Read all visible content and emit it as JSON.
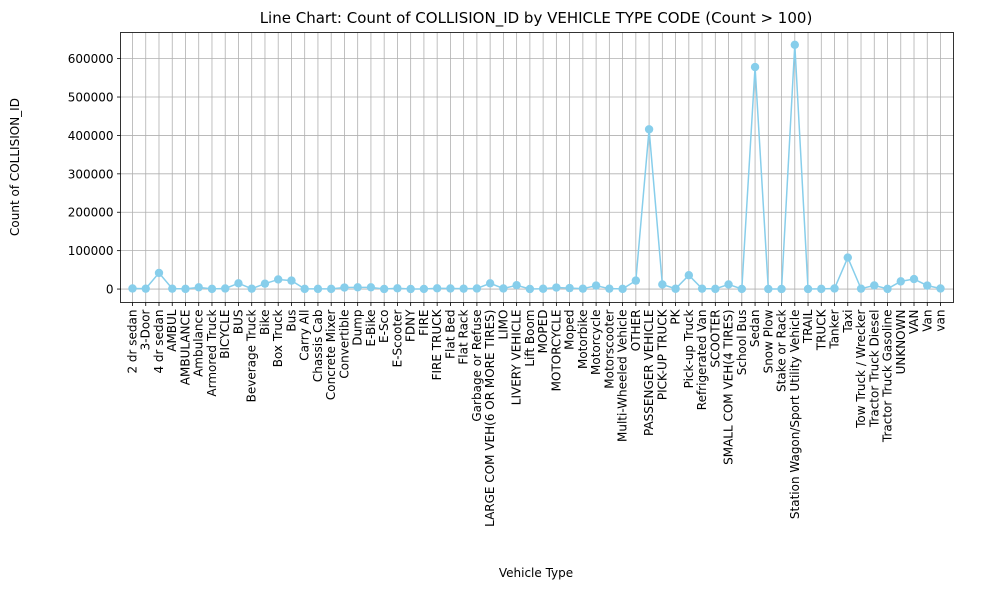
{
  "chart_data": {
    "type": "line",
    "title": "Line Chart: Count of COLLISION_ID by VEHICLE TYPE CODE (Count > 100)",
    "xlabel": "Vehicle Type",
    "ylabel": "Count of COLLISION_ID",
    "ylim": [
      -35000,
      668000
    ],
    "yticks": [
      0,
      100000,
      200000,
      300000,
      400000,
      500000,
      600000
    ],
    "grid": true,
    "color": "#87ceeb",
    "categories": [
      "2 dr sedan",
      "3-Door",
      "4 dr sedan",
      "AMBUL",
      "AMBULANCE",
      "Ambulance",
      "Armored Truck",
      "BICYCLE",
      "BUS",
      "Beverage Truck",
      "Bike",
      "Box Truck",
      "Bus",
      "Carry All",
      "Chassis Cab",
      "Concrete Mixer",
      "Convertible",
      "Dump",
      "E-Bike",
      "E-Sco",
      "E-Scooter",
      "FDNY",
      "FIRE",
      "FIRE TRUCK",
      "Flat Bed",
      "Flat Rack",
      "Garbage or Refuse",
      "LARGE COM VEH(6 OR MORE TIRES)",
      "LIMO",
      "LIVERY VEHICLE",
      "Lift Boom",
      "MOPED",
      "MOTORCYCLE",
      "Moped",
      "Motorbike",
      "Motorcycle",
      "Motorscooter",
      "Multi-Wheeled Vehicle",
      "OTHER",
      "PASSENGER VEHICLE",
      "PICK-UP TRUCK",
      "PK",
      "Pick-up Truck",
      "Refrigerated Van",
      "SCOOTER",
      "SMALL COM VEH(4 TIRES)",
      "School Bus",
      "Sedan",
      "Snow Plow",
      "Stake or Rack",
      "Station Wagon/Sport Utility Vehicle",
      "TRAIL",
      "TRUCK",
      "Tanker",
      "Taxi",
      "Tow Truck / Wrecker",
      "Tractor Truck Diesel",
      "Tractor Truck Gasoline",
      "UNKNOWN",
      "VAN",
      "Van",
      "van"
    ],
    "values": [
      1500,
      1000,
      42000,
      1000,
      500,
      4500,
      500,
      1500,
      15000,
      1000,
      14000,
      25000,
      22000,
      500,
      500,
      500,
      4000,
      4500,
      4500,
      200,
      2000,
      200,
      300,
      2000,
      1500,
      1000,
      1500,
      15000,
      1500,
      10000,
      200,
      800,
      4000,
      2500,
      1000,
      9000,
      1000,
      500,
      22000,
      416000,
      12000,
      800,
      36000,
      1000,
      500,
      12000,
      300,
      578000,
      200,
      200,
      636000,
      200,
      500,
      1500,
      82000,
      1000,
      9500,
      500,
      20000,
      26000,
      9000,
      1500
    ]
  }
}
